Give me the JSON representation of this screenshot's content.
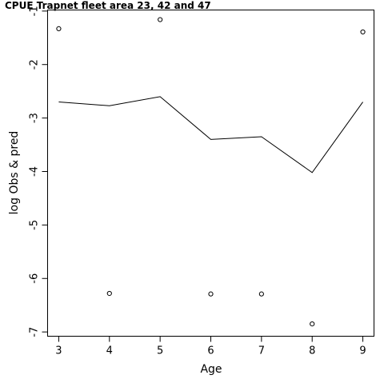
{
  "chart_data": {
    "type": "line",
    "title": "CPUE Trapnet fleet area 23, 42 and 47",
    "xlabel": "Age",
    "ylabel": "log Obs & pred",
    "x": [
      3,
      4,
      5,
      6,
      7,
      8,
      9
    ],
    "xlim": [
      2.78,
      9.22
    ],
    "ylim": [
      -7.08,
      -0.98
    ],
    "x_ticks": [
      3,
      4,
      5,
      6,
      7,
      8,
      9
    ],
    "y_ticks": [
      -7,
      -6,
      -5,
      -4,
      -3,
      -2,
      -1
    ],
    "grid": false,
    "legend": "none",
    "series": [
      {
        "name": "",
        "kind": "line",
        "values": [
          -2.7,
          -2.77,
          -2.6,
          -3.4,
          -3.35,
          -4.02,
          -2.7
        ]
      },
      {
        "name": "",
        "kind": "points",
        "marker": "open-circle",
        "x": [
          3,
          4,
          5,
          6,
          7,
          8,
          9
        ],
        "values": [
          -1.33,
          -6.28,
          -1.16,
          -6.29,
          -6.29,
          -6.85,
          -1.39
        ]
      }
    ],
    "colors": {
      "line": "#000000",
      "points": "#000000",
      "axes": "#000000"
    }
  }
}
